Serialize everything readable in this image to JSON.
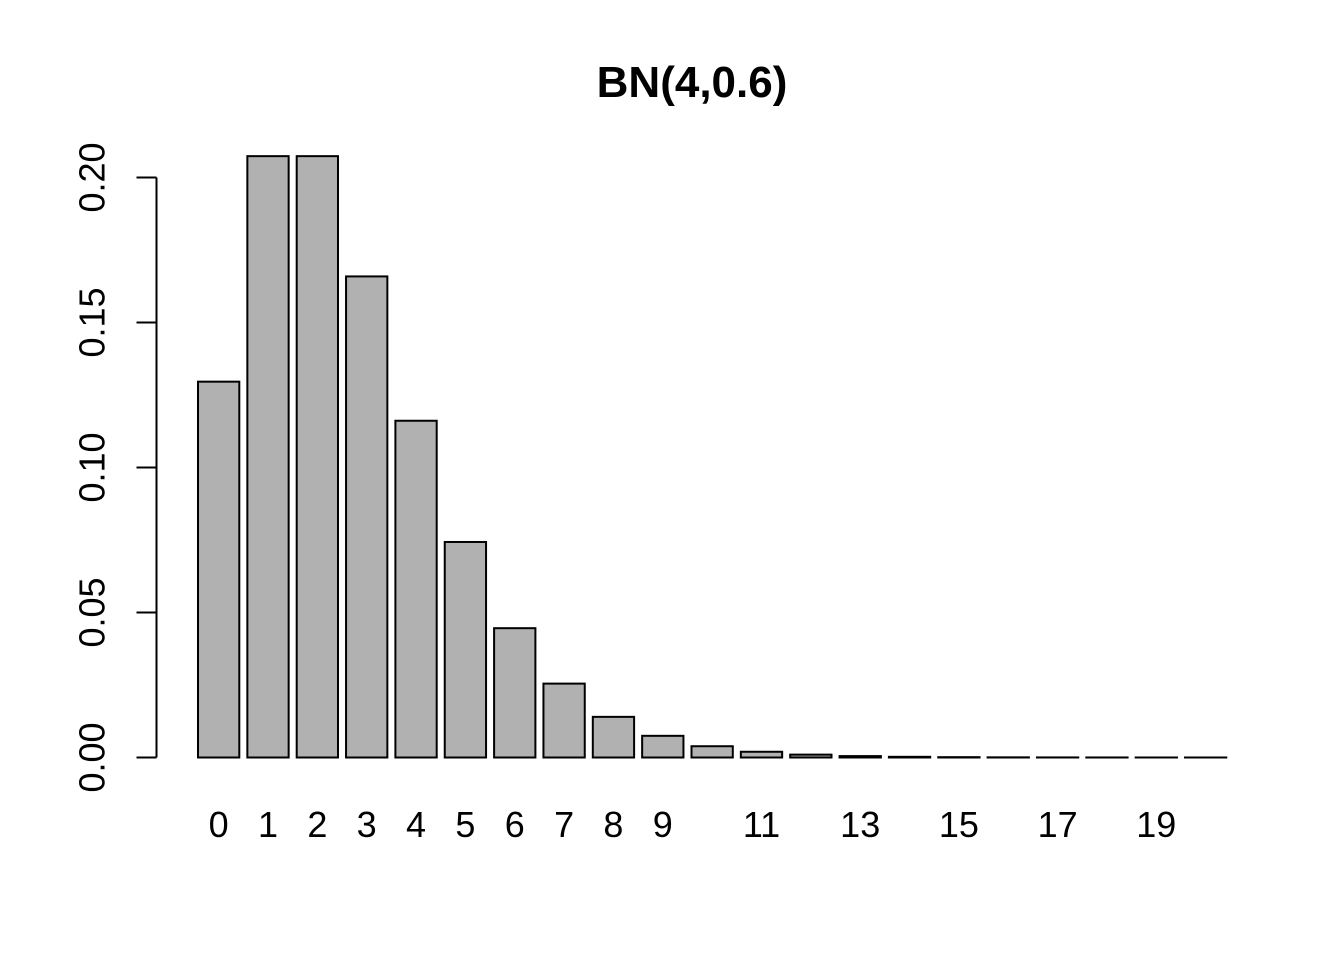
{
  "chart_data": {
    "type": "bar",
    "title": "BN(4,0.6)",
    "xlabel": "",
    "ylabel": "",
    "x": [
      0,
      1,
      2,
      3,
      4,
      5,
      6,
      7,
      8,
      9,
      10,
      11,
      12,
      13,
      14,
      15,
      16,
      17,
      18,
      19,
      20
    ],
    "values": [
      0.1296,
      0.20736,
      0.20736,
      0.165888,
      0.1161216,
      0.0743178,
      0.0445907,
      0.0254804,
      0.0140142,
      0.0074743,
      0.0038866,
      0.0019786,
      0.0009893,
      0.0004871,
      0.0002366,
      0.0001136,
      5.39e-05,
      2.54e-05,
      1.18e-05,
      5.5e-06,
      2.5e-06
    ],
    "x_tick_labels": [
      "0",
      "1",
      "2",
      "3",
      "4",
      "5",
      "6",
      "7",
      "8",
      "9",
      "",
      "11",
      "",
      "13",
      "",
      "15",
      "",
      "17",
      "",
      "19",
      ""
    ],
    "y_ticks": [
      0,
      0.05,
      0.1,
      0.15,
      0.2
    ],
    "y_tick_labels": [
      "0.00",
      "0.05",
      "0.10",
      "0.15",
      "0.20"
    ],
    "ylim": [
      0,
      0.2074
    ],
    "grid": false,
    "legend_position": "none",
    "bar_fill_color": "#b1b1b1",
    "bar_stroke_color": "#000000",
    "axis_color": "#000000",
    "background_color": "#ffffff"
  }
}
